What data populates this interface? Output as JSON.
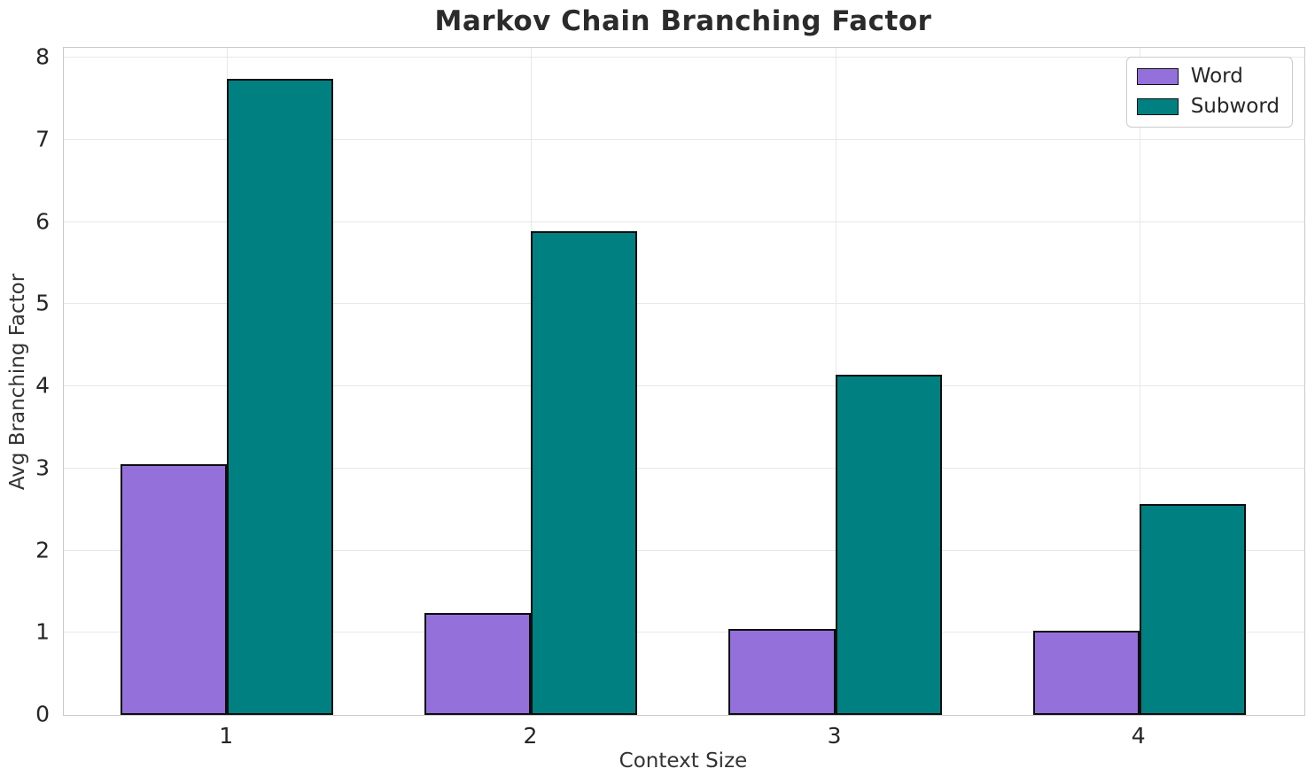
{
  "chart_data": {
    "type": "bar",
    "title": "Markov Chain Branching Factor",
    "xlabel": "Context Size",
    "ylabel": "Avg Branching Factor",
    "categories": [
      "1",
      "2",
      "3",
      "4"
    ],
    "series": [
      {
        "name": "Word",
        "color": "#9470db",
        "edge_color": "#0d0d0d",
        "values": [
          3.05,
          1.24,
          1.05,
          1.02
        ]
      },
      {
        "name": "Subword",
        "color": "#008080",
        "edge_color": "#0d0d0d",
        "values": [
          7.74,
          5.89,
          4.14,
          2.57
        ]
      }
    ],
    "x_positions": [
      0,
      1,
      2,
      3
    ],
    "bar_width": 0.35,
    "xlim": [
      -0.537,
      3.543
    ],
    "ylim": [
      0,
      8.12
    ],
    "yticks": [
      0,
      1,
      2,
      3,
      4,
      5,
      6,
      7,
      8
    ],
    "grid": true,
    "grid_color": "#e8e8e8",
    "spine_color": "#c9c9c9",
    "text_color": "#262626",
    "legend_position": "upper right"
  }
}
